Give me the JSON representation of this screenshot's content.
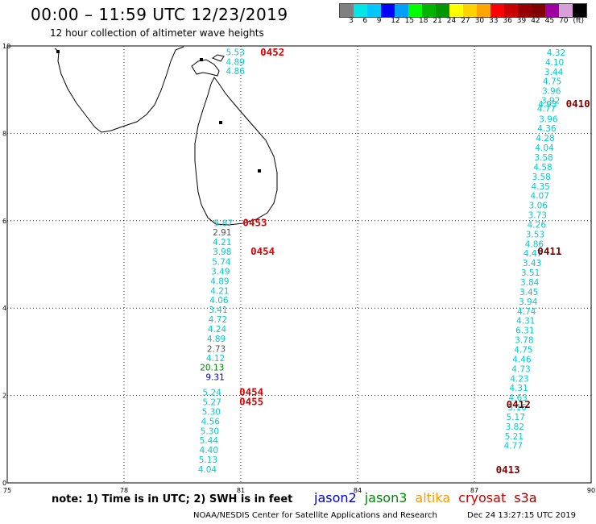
{
  "header": {
    "title": "00:00 – 11:59 UTC 12/23/2019",
    "subtitle": "12 hour collection of altimeter wave heights"
  },
  "legend": {
    "colors": [
      "#808080",
      "#00e6e6",
      "#00c8ff",
      "#0000ff",
      "#00a0ff",
      "#00ff00",
      "#00b400",
      "#009600",
      "#ffff00",
      "#ffd200",
      "#ffa500",
      "#ff0000",
      "#c80000",
      "#960000",
      "#800000",
      "#a000a0",
      "#d8a0d8",
      "#000000"
    ],
    "labels": [
      "3",
      "6",
      "9",
      "12",
      "15",
      "18",
      "21",
      "24",
      "27",
      "30",
      "33",
      "36",
      "39",
      "42",
      "45",
      "70",
      "(ft)"
    ]
  },
  "axes": {
    "x_ticks": [
      "75",
      "78",
      "81",
      "84",
      "87",
      "90"
    ],
    "y_ticks": [
      "0",
      "2",
      "4",
      "6",
      "8",
      "10"
    ]
  },
  "tracks": [
    {
      "pass": "0452",
      "pass_color": "#e00000",
      "pass_lon": 81.5,
      "pass_lat": 9.78,
      "points": [
        {
          "v": "5.53",
          "lon": 80.86,
          "lat": 9.79,
          "c": "#00cccc"
        },
        {
          "v": "4.89",
          "lon": 80.86,
          "lat": 9.57,
          "c": "#00cccc"
        },
        {
          "v": "4.86",
          "lon": 80.86,
          "lat": 9.35,
          "c": "#00cccc"
        }
      ]
    },
    {
      "pass": "0453",
      "pass_color": "#e00000",
      "pass_lon": 81.05,
      "pass_lat": 5.88,
      "points": [
        {
          "v": "5.87",
          "lon": 80.55,
          "lat": 5.88,
          "c": "#00cccc"
        },
        {
          "v": "2.91",
          "lon": 80.52,
          "lat": 5.66,
          "c": "#555555"
        },
        {
          "v": "4.21",
          "lon": 80.52,
          "lat": 5.44,
          "c": "#00cccc"
        },
        {
          "v": "3.98",
          "lon": 80.52,
          "lat": 5.22,
          "c": "#00cccc"
        },
        {
          "v": "5.74",
          "lon": 80.5,
          "lat": 4.99,
          "c": "#00cccc"
        },
        {
          "v": "3.49",
          "lon": 80.48,
          "lat": 4.77,
          "c": "#00cccc"
        },
        {
          "v": "4.89",
          "lon": 80.46,
          "lat": 4.55,
          "c": "#00cccc"
        },
        {
          "v": "4.21",
          "lon": 80.46,
          "lat": 4.33,
          "c": "#00cccc"
        },
        {
          "v": "4.06",
          "lon": 80.44,
          "lat": 4.11,
          "c": "#00cccc"
        },
        {
          "v": "3.41",
          "lon": 80.42,
          "lat": 3.89,
          "c": "#00cccc"
        },
        {
          "v": "4.72",
          "lon": 80.41,
          "lat": 3.67,
          "c": "#00cccc"
        },
        {
          "v": "4.24",
          "lon": 80.39,
          "lat": 3.45,
          "c": "#00cccc"
        },
        {
          "v": "4.89",
          "lon": 80.37,
          "lat": 3.23,
          "c": "#00cccc"
        },
        {
          "v": "2.73",
          "lon": 80.37,
          "lat": 3.0,
          "c": "#555555"
        },
        {
          "v": "4.12",
          "lon": 80.35,
          "lat": 2.79,
          "c": "#00cccc"
        },
        {
          "v": "20.13",
          "lon": 80.26,
          "lat": 2.57,
          "c": "#008000"
        },
        {
          "v": "9.31",
          "lon": 80.34,
          "lat": 2.35,
          "c": "#0000aa"
        }
      ]
    },
    {
      "pass": "0454",
      "pass_color": "#e00000",
      "pass_lon": 81.25,
      "pass_lat": 5.22,
      "points": []
    },
    {
      "pass": "0454",
      "pass_color": "#e00000",
      "pass_lon": 80.96,
      "pass_lat": 2.0,
      "points": [
        {
          "v": "5.24",
          "lon": 80.26,
          "lat": 2.0,
          "c": "#00cccc"
        },
        {
          "v": "5.27",
          "lon": 80.26,
          "lat": 1.78,
          "c": "#00cccc"
        },
        {
          "v": "5.30",
          "lon": 80.24,
          "lat": 1.56,
          "c": "#00cccc"
        },
        {
          "v": "4.56",
          "lon": 80.22,
          "lat": 1.34,
          "c": "#00cccc"
        },
        {
          "v": "5.30",
          "lon": 80.2,
          "lat": 1.12,
          "c": "#00cccc"
        },
        {
          "v": "5.44",
          "lon": 80.18,
          "lat": 0.9,
          "c": "#00cccc"
        },
        {
          "v": "4.40",
          "lon": 80.18,
          "lat": 0.68,
          "c": "#00cccc"
        },
        {
          "v": "5.13",
          "lon": 80.16,
          "lat": 0.46,
          "c": "#00cccc"
        },
        {
          "v": "4.04",
          "lon": 80.14,
          "lat": 0.24,
          "c": "#00cccc"
        }
      ]
    },
    {
      "pass": "0455",
      "pass_color": "#e00000",
      "pass_lon": 80.96,
      "pass_lat": 1.78,
      "points": []
    },
    {
      "pass": "0410",
      "pass_color": "#800000",
      "pass_lon": 89.35,
      "pass_lat": 8.6,
      "points": [
        {
          "v": "4.32",
          "lon": 89.1,
          "lat": 9.78,
          "c": "#00cccc"
        },
        {
          "v": "4.10",
          "lon": 89.06,
          "lat": 9.56,
          "c": "#00cccc"
        },
        {
          "v": "3.44",
          "lon": 89.04,
          "lat": 9.34,
          "c": "#00cccc"
        },
        {
          "v": "4.75",
          "lon": 89.0,
          "lat": 9.12,
          "c": "#00cccc"
        },
        {
          "v": "3.96",
          "lon": 88.98,
          "lat": 8.9,
          "c": "#00cccc"
        },
        {
          "v": "3.92",
          "lon": 88.96,
          "lat": 8.68,
          "c": "#00cccc"
        },
        {
          "v": "4.93",
          "lon": 88.88,
          "lat": 8.6,
          "c": "#00cccc"
        },
        {
          "v": "4.77",
          "lon": 88.85,
          "lat": 8.5,
          "c": "#00cccc"
        },
        {
          "v": "3.96",
          "lon": 88.9,
          "lat": 8.26,
          "c": "#00cccc"
        },
        {
          "v": "4.36",
          "lon": 88.86,
          "lat": 8.04,
          "c": "#00cccc"
        },
        {
          "v": "4.28",
          "lon": 88.82,
          "lat": 7.82,
          "c": "#00cccc"
        },
        {
          "v": "4.04",
          "lon": 88.8,
          "lat": 7.6,
          "c": "#00cccc"
        },
        {
          "v": "3.58",
          "lon": 88.78,
          "lat": 7.38,
          "c": "#00cccc"
        },
        {
          "v": "4.58",
          "lon": 88.76,
          "lat": 7.16,
          "c": "#00cccc"
        },
        {
          "v": "3.58",
          "lon": 88.72,
          "lat": 6.94,
          "c": "#00cccc"
        },
        {
          "v": "4.35",
          "lon": 88.7,
          "lat": 6.72,
          "c": "#00cccc"
        },
        {
          "v": "4.07",
          "lon": 88.68,
          "lat": 6.5,
          "c": "#00cccc"
        },
        {
          "v": "3.06",
          "lon": 88.64,
          "lat": 6.28,
          "c": "#00cccc"
        },
        {
          "v": "3.73",
          "lon": 88.62,
          "lat": 6.06,
          "c": "#00cccc"
        },
        {
          "v": "4.26",
          "lon": 88.6,
          "lat": 5.84,
          "c": "#00cccc"
        },
        {
          "v": "3.53",
          "lon": 88.56,
          "lat": 5.62,
          "c": "#00cccc"
        }
      ]
    },
    {
      "pass": "0411",
      "pass_color": "#800000",
      "pass_lon": 88.62,
      "pass_lat": 5.22,
      "points": [
        {
          "v": "4.86",
          "lon": 88.54,
          "lat": 5.4,
          "c": "#00cccc"
        },
        {
          "v": "4.47",
          "lon": 88.5,
          "lat": 5.18,
          "c": "#00cccc"
        },
        {
          "v": "3.43",
          "lon": 88.48,
          "lat": 4.96,
          "c": "#00cccc"
        },
        {
          "v": "3.51",
          "lon": 88.44,
          "lat": 4.74,
          "c": "#00cccc"
        },
        {
          "v": "3.84",
          "lon": 88.42,
          "lat": 4.52,
          "c": "#00cccc"
        },
        {
          "v": "3.45",
          "lon": 88.4,
          "lat": 4.3,
          "c": "#00cccc"
        },
        {
          "v": "3.94",
          "lon": 88.38,
          "lat": 4.08,
          "c": "#00cccc"
        },
        {
          "v": "4.74",
          "lon": 88.34,
          "lat": 3.86,
          "c": "#00cccc"
        },
        {
          "v": "4.31",
          "lon": 88.32,
          "lat": 3.64,
          "c": "#00cccc"
        },
        {
          "v": "6.31",
          "lon": 88.3,
          "lat": 3.42,
          "c": "#00cccc"
        },
        {
          "v": "3.78",
          "lon": 88.28,
          "lat": 3.2,
          "c": "#00cccc"
        },
        {
          "v": "4.75",
          "lon": 88.26,
          "lat": 2.98,
          "c": "#00cccc"
        },
        {
          "v": "4.46",
          "lon": 88.22,
          "lat": 2.76,
          "c": "#00cccc"
        },
        {
          "v": "4.73",
          "lon": 88.2,
          "lat": 2.54,
          "c": "#00cccc"
        }
      ]
    },
    {
      "pass": "0412",
      "pass_color": "#800000",
      "pass_lon": 87.82,
      "pass_lat": 1.72,
      "points": [
        {
          "v": "4.23",
          "lon": 88.16,
          "lat": 2.32,
          "c": "#00cccc"
        },
        {
          "v": "4.31",
          "lon": 88.14,
          "lat": 2.1,
          "c": "#00cccc"
        },
        {
          "v": "4.63",
          "lon": 88.12,
          "lat": 1.88,
          "c": "#00cccc"
        },
        {
          "v": "5.16",
          "lon": 88.1,
          "lat": 1.66,
          "c": "#00cccc"
        },
        {
          "v": "5.17",
          "lon": 88.06,
          "lat": 1.44,
          "c": "#00cccc"
        },
        {
          "v": "3.82",
          "lon": 88.04,
          "lat": 1.22,
          "c": "#00cccc"
        },
        {
          "v": "5.21",
          "lon": 88.02,
          "lat": 1.0,
          "c": "#00cccc"
        },
        {
          "v": "4.77",
          "lon": 88.0,
          "lat": 0.78,
          "c": "#00cccc"
        }
      ]
    },
    {
      "pass": "0413",
      "pass_color": "#800000",
      "pass_lon": 87.55,
      "pass_lat": 0.22,
      "points": []
    }
  ],
  "note": "note: 1) Time is in UTC; 2) SWH is in feet",
  "missions": [
    {
      "name": "jason2",
      "color": "#0000cc"
    },
    {
      "name": "jason3",
      "color": "#008800"
    },
    {
      "name": "altika",
      "color": "#ff9900"
    },
    {
      "name": "cryosat",
      "color": "#cc0000"
    },
    {
      "name": "s3a",
      "color": "#990000"
    }
  ],
  "footer": {
    "center": "NOAA/NESDIS Center for Satellite Applications and Research",
    "timestamp": "Dec 24 13:27:15 UTC 2019"
  }
}
